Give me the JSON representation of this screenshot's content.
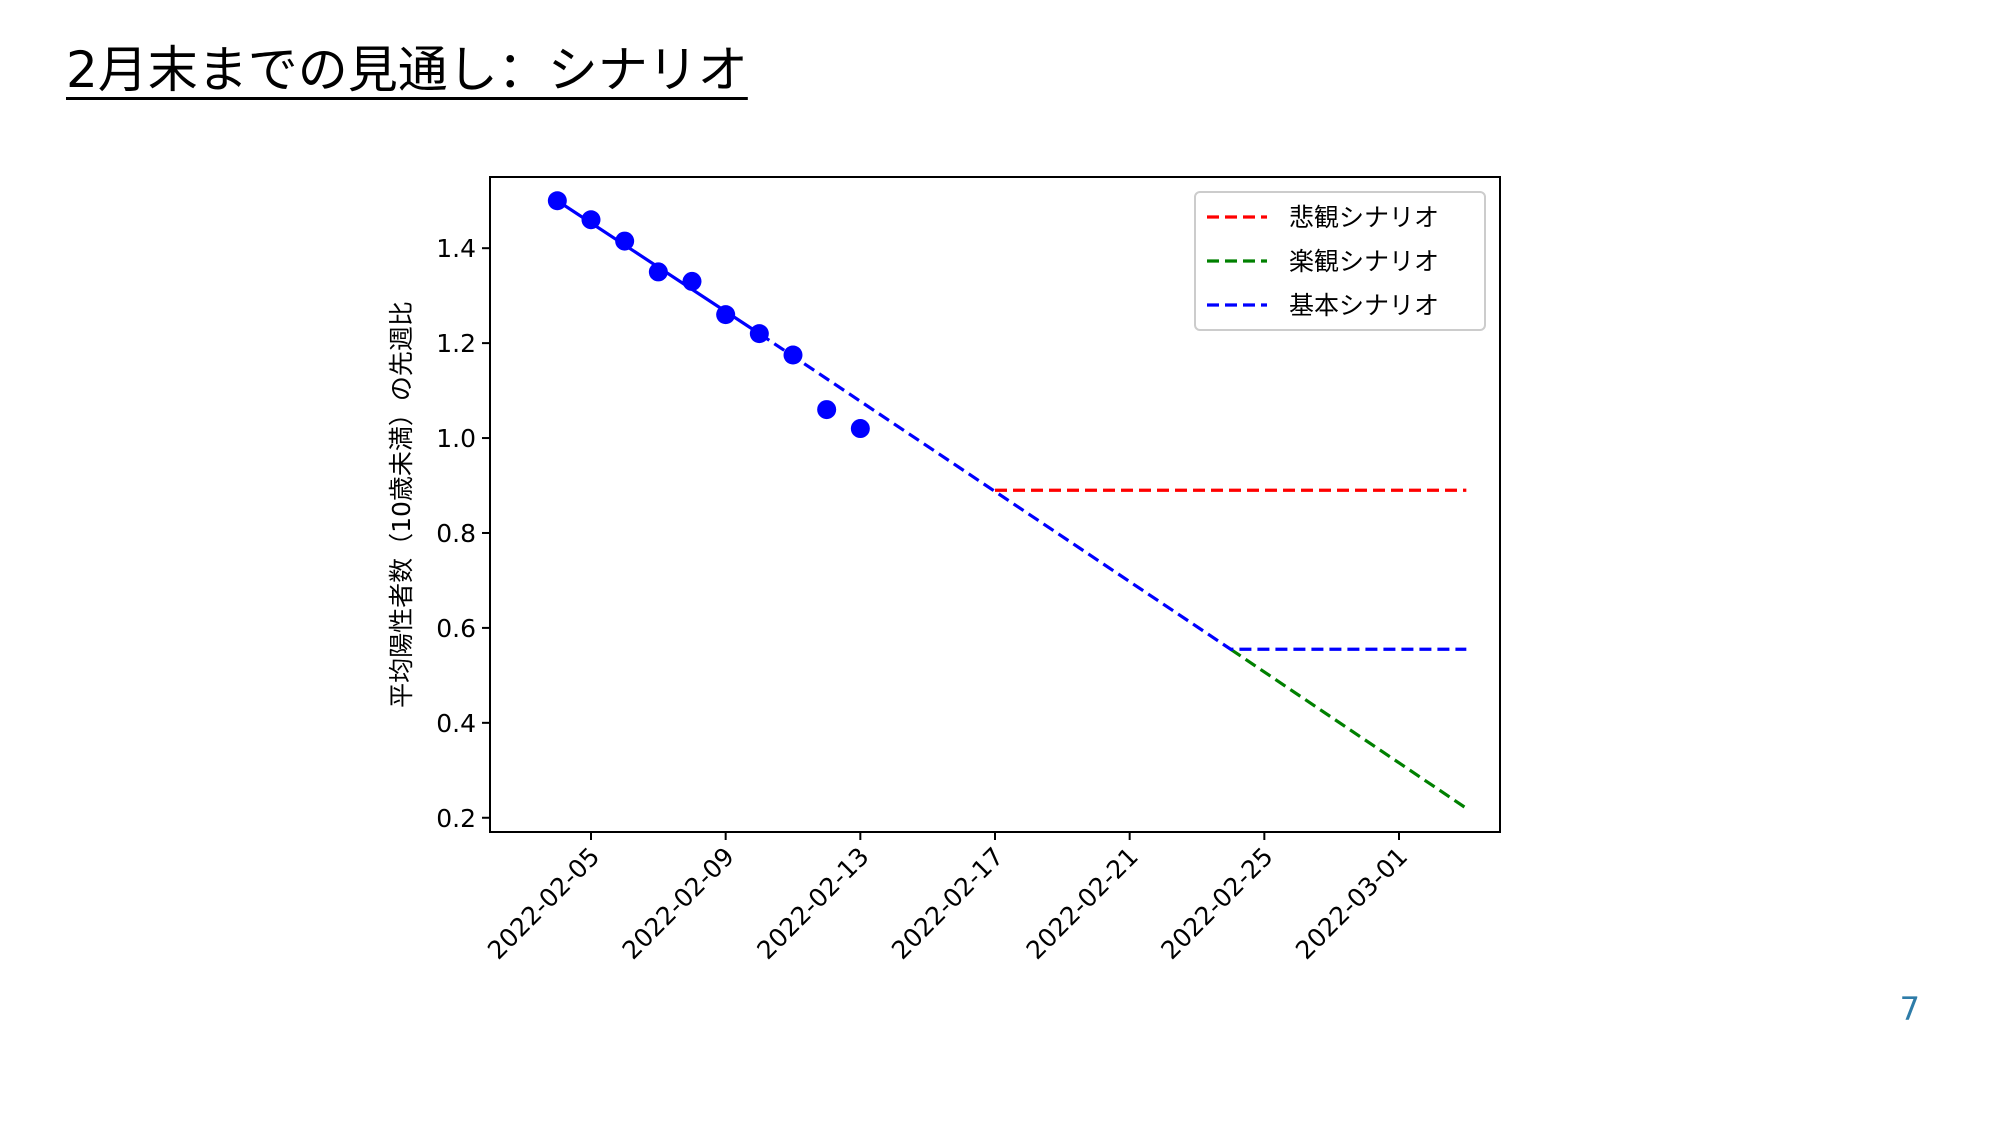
{
  "slide": {
    "title": "2月末までの見通し：シナリオ",
    "page_number": "7"
  },
  "colors": {
    "observed": "#0000ff",
    "pessimistic": "#ff0000",
    "optimistic": "#008000",
    "base": "#0000ff",
    "page_number": "#2e7ca8"
  },
  "chart_data": {
    "type": "line",
    "ylabel": "平均陽性者数（10歳未満）の先週比",
    "xlabel": "",
    "ylim": [
      0.17,
      1.55
    ],
    "xlim": [
      "2022-02-02",
      "2022-03-04"
    ],
    "y_ticks": [
      "0.2",
      "0.4",
      "0.6",
      "0.8",
      "1.0",
      "1.2",
      "1.4"
    ],
    "x_ticks": [
      "2022-02-05",
      "2022-02-09",
      "2022-02-13",
      "2022-02-17",
      "2022-02-21",
      "2022-02-25",
      "2022-03-01"
    ],
    "grid": false,
    "legend_position": "top-right",
    "observed": {
      "marker": "circle",
      "x": [
        "2022-02-04",
        "2022-02-05",
        "2022-02-06",
        "2022-02-07",
        "2022-02-08",
        "2022-02-09",
        "2022-02-10",
        "2022-02-11",
        "2022-02-12",
        "2022-02-13"
      ],
      "y": [
        1.5,
        1.46,
        1.415,
        1.35,
        1.33,
        1.26,
        1.22,
        1.175,
        1.06,
        1.02
      ]
    },
    "fit": {
      "x": [
        "2022-02-04",
        "2022-02-10"
      ],
      "y": [
        1.5,
        1.22
      ]
    },
    "series": [
      {
        "name": "悲観シナリオ",
        "color": "#ff0000",
        "style": "dashed",
        "x": [
          "2022-02-17",
          "2022-03-03"
        ],
        "y": [
          0.89,
          0.89
        ]
      },
      {
        "name": "楽観シナリオ",
        "color": "#008000",
        "style": "dashed",
        "x": [
          "2022-02-24",
          "2022-03-03"
        ],
        "y": [
          0.555,
          0.22
        ]
      },
      {
        "name": "基本シナリオ",
        "color": "#0000ff",
        "style": "dashed",
        "x": [
          "2022-02-10",
          "2022-02-24",
          "2022-03-03"
        ],
        "y": [
          1.22,
          0.555,
          0.555
        ]
      }
    ]
  }
}
